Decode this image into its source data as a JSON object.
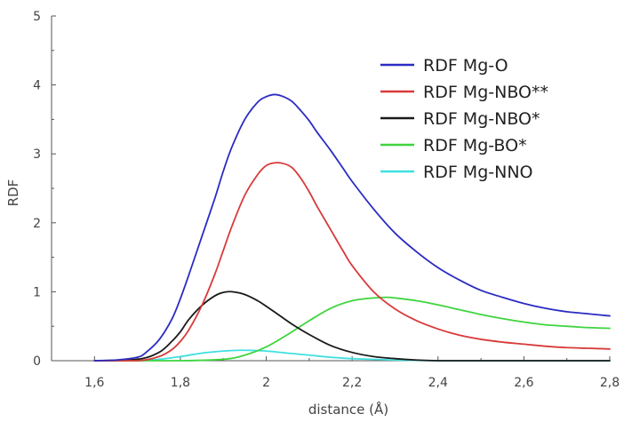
{
  "chart_data": {
    "type": "line",
    "title": "",
    "xlabel": "distance (Å)",
    "ylabel": "RDF",
    "xlim": [
      1.5,
      2.8
    ],
    "ylim": [
      0,
      5
    ],
    "x_ticks": [
      1.6,
      1.8,
      2.0,
      2.2,
      2.4,
      2.6,
      2.8
    ],
    "x_tick_labels": [
      "1,6",
      "1,8",
      "2",
      "2,2",
      "2,4",
      "2,6",
      "2,8"
    ],
    "y_ticks": [
      0,
      1,
      2,
      3,
      4,
      5
    ],
    "y_tick_labels": [
      "0",
      "1",
      "2",
      "3",
      "4",
      "5"
    ],
    "grid": false,
    "legend_position": "top-right",
    "series": [
      {
        "name": "RDF Mg-O",
        "color": "#2b2bc4",
        "x": [
          1.6,
          1.65,
          1.7,
          1.72,
          1.75,
          1.78,
          1.8,
          1.82,
          1.85,
          1.88,
          1.9,
          1.92,
          1.95,
          1.98,
          2.0,
          2.02,
          2.04,
          2.06,
          2.08,
          2.1,
          2.12,
          2.15,
          2.18,
          2.2,
          2.25,
          2.3,
          2.35,
          2.4,
          2.45,
          2.5,
          2.55,
          2.6,
          2.65,
          2.7,
          2.75,
          2.8
        ],
        "y": [
          0.0,
          0.01,
          0.05,
          0.12,
          0.3,
          0.6,
          0.9,
          1.25,
          1.8,
          2.35,
          2.75,
          3.1,
          3.5,
          3.75,
          3.83,
          3.86,
          3.83,
          3.76,
          3.63,
          3.48,
          3.3,
          3.05,
          2.78,
          2.6,
          2.2,
          1.85,
          1.58,
          1.35,
          1.17,
          1.02,
          0.92,
          0.83,
          0.76,
          0.71,
          0.68,
          0.65
        ]
      },
      {
        "name": "RDF Mg-NBO**",
        "color": "#d93a3a",
        "x": [
          1.6,
          1.7,
          1.75,
          1.78,
          1.8,
          1.82,
          1.85,
          1.88,
          1.9,
          1.92,
          1.95,
          1.98,
          2.0,
          2.02,
          2.04,
          2.06,
          2.08,
          2.1,
          2.12,
          2.15,
          2.18,
          2.2,
          2.25,
          2.3,
          2.35,
          2.4,
          2.45,
          2.5,
          2.55,
          2.6,
          2.65,
          2.7,
          2.75,
          2.8
        ],
        "y": [
          0.0,
          0.0,
          0.06,
          0.16,
          0.28,
          0.45,
          0.8,
          1.25,
          1.6,
          1.95,
          2.4,
          2.7,
          2.83,
          2.87,
          2.86,
          2.8,
          2.65,
          2.45,
          2.22,
          1.9,
          1.58,
          1.38,
          1.0,
          0.75,
          0.58,
          0.46,
          0.37,
          0.31,
          0.27,
          0.24,
          0.21,
          0.19,
          0.18,
          0.17
        ]
      },
      {
        "name": "RDF Mg-NBO*",
        "color": "#1a1a1a",
        "x": [
          1.6,
          1.7,
          1.75,
          1.78,
          1.8,
          1.82,
          1.85,
          1.88,
          1.9,
          1.92,
          1.95,
          1.98,
          2.0,
          2.03,
          2.06,
          2.1,
          2.15,
          2.2,
          2.25,
          2.3,
          2.35,
          2.4,
          2.5,
          2.6,
          2.7,
          2.8
        ],
        "y": [
          0.0,
          0.02,
          0.12,
          0.28,
          0.42,
          0.6,
          0.8,
          0.94,
          0.99,
          1.0,
          0.96,
          0.87,
          0.79,
          0.66,
          0.53,
          0.38,
          0.22,
          0.12,
          0.06,
          0.03,
          0.01,
          0.0,
          0.0,
          0.0,
          0.0,
          0.0
        ]
      },
      {
        "name": "RDF Mg-BO*",
        "color": "#3fd43f",
        "x": [
          1.6,
          1.8,
          1.9,
          1.95,
          2.0,
          2.05,
          2.1,
          2.15,
          2.2,
          2.25,
          2.28,
          2.3,
          2.35,
          2.4,
          2.45,
          2.5,
          2.55,
          2.6,
          2.65,
          2.7,
          2.75,
          2.8
        ],
        "y": [
          0.0,
          0.0,
          0.02,
          0.08,
          0.2,
          0.38,
          0.58,
          0.76,
          0.87,
          0.91,
          0.92,
          0.91,
          0.87,
          0.81,
          0.74,
          0.67,
          0.61,
          0.56,
          0.52,
          0.5,
          0.48,
          0.47
        ]
      },
      {
        "name": "RDF Mg-NNO",
        "color": "#3fe0e0",
        "x": [
          1.6,
          1.7,
          1.75,
          1.8,
          1.85,
          1.9,
          1.93,
          1.96,
          2.0,
          2.05,
          2.1,
          2.15,
          2.2,
          2.3,
          2.4,
          2.5,
          2.6,
          2.7,
          2.8
        ],
        "y": [
          0.0,
          0.0,
          0.02,
          0.06,
          0.11,
          0.14,
          0.15,
          0.15,
          0.14,
          0.11,
          0.08,
          0.05,
          0.03,
          0.01,
          0.0,
          0.0,
          0.0,
          0.0,
          0.0
        ]
      }
    ]
  }
}
